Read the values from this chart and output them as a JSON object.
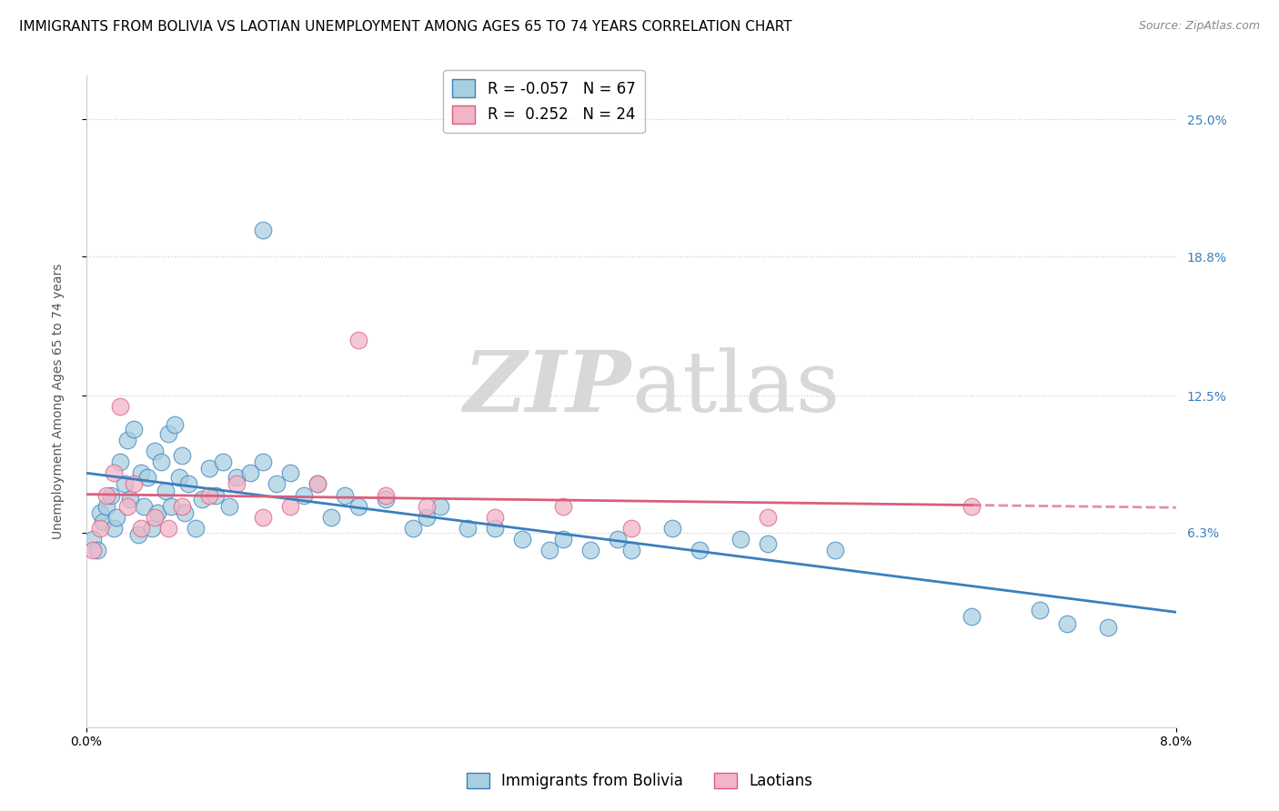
{
  "title": "IMMIGRANTS FROM BOLIVIA VS LAOTIAN UNEMPLOYMENT AMONG AGES 65 TO 74 YEARS CORRELATION CHART",
  "source": "Source: ZipAtlas.com",
  "ylabel": "Unemployment Among Ages 65 to 74 years",
  "legend_labels": [
    "Immigrants from Bolivia",
    "Laotians"
  ],
  "legend_r": [
    -0.057,
    0.252
  ],
  "legend_n": [
    67,
    24
  ],
  "xlim": [
    0.0,
    8.0
  ],
  "ylim": [
    -2.5,
    27.0
  ],
  "right_yticks": [
    6.3,
    12.5,
    18.8,
    25.0
  ],
  "right_ytick_labels": [
    "6.3%",
    "12.5%",
    "18.8%",
    "25.0%"
  ],
  "color_blue": "#a8cfe0",
  "color_pink": "#f2b4c8",
  "line_blue": "#3a7fbf",
  "line_pink": "#d95f7a",
  "grid_color": "#cccccc",
  "background_color": "#ffffff",
  "watermark_zip": "ZIP",
  "watermark_atlas": "atlas",
  "title_fontsize": 11,
  "axis_label_fontsize": 10,
  "tick_fontsize": 10,
  "legend_fontsize": 12,
  "bolivia_x": [
    0.05,
    0.08,
    0.1,
    0.12,
    0.15,
    0.18,
    0.2,
    0.22,
    0.25,
    0.28,
    0.3,
    0.32,
    0.35,
    0.38,
    0.4,
    0.42,
    0.45,
    0.48,
    0.5,
    0.52,
    0.55,
    0.58,
    0.6,
    0.62,
    0.65,
    0.68,
    0.7,
    0.72,
    0.75,
    0.8,
    0.85,
    0.9,
    0.95,
    1.0,
    1.05,
    1.1,
    1.2,
    1.3,
    1.4,
    1.5,
    1.6,
    1.7,
    1.8,
    1.9,
    2.0,
    2.2,
    2.4,
    2.5,
    2.6,
    2.8,
    3.0,
    3.2,
    3.4,
    3.5,
    3.7,
    3.9,
    4.0,
    4.3,
    4.5,
    4.8,
    5.0,
    5.5,
    6.5,
    7.0,
    7.2,
    7.5,
    1.3
  ],
  "bolivia_y": [
    6.0,
    5.5,
    7.2,
    6.8,
    7.5,
    8.0,
    6.5,
    7.0,
    9.5,
    8.5,
    10.5,
    7.8,
    11.0,
    6.2,
    9.0,
    7.5,
    8.8,
    6.5,
    10.0,
    7.2,
    9.5,
    8.2,
    10.8,
    7.5,
    11.2,
    8.8,
    9.8,
    7.2,
    8.5,
    6.5,
    7.8,
    9.2,
    8.0,
    9.5,
    7.5,
    8.8,
    9.0,
    9.5,
    8.5,
    9.0,
    8.0,
    8.5,
    7.0,
    8.0,
    7.5,
    7.8,
    6.5,
    7.0,
    7.5,
    6.5,
    6.5,
    6.0,
    5.5,
    6.0,
    5.5,
    6.0,
    5.5,
    6.5,
    5.5,
    6.0,
    5.8,
    5.5,
    2.5,
    2.8,
    2.2,
    2.0,
    20.0
  ],
  "laotian_x": [
    0.05,
    0.1,
    0.15,
    0.2,
    0.25,
    0.3,
    0.35,
    0.4,
    0.5,
    0.6,
    0.7,
    0.9,
    1.1,
    1.3,
    1.5,
    1.7,
    2.0,
    2.2,
    2.5,
    3.0,
    3.5,
    4.0,
    5.0,
    6.5
  ],
  "laotian_y": [
    5.5,
    6.5,
    8.0,
    9.0,
    12.0,
    7.5,
    8.5,
    6.5,
    7.0,
    6.5,
    7.5,
    8.0,
    8.5,
    7.0,
    7.5,
    8.5,
    15.0,
    8.0,
    7.5,
    7.0,
    7.5,
    6.5,
    7.0,
    7.5
  ]
}
